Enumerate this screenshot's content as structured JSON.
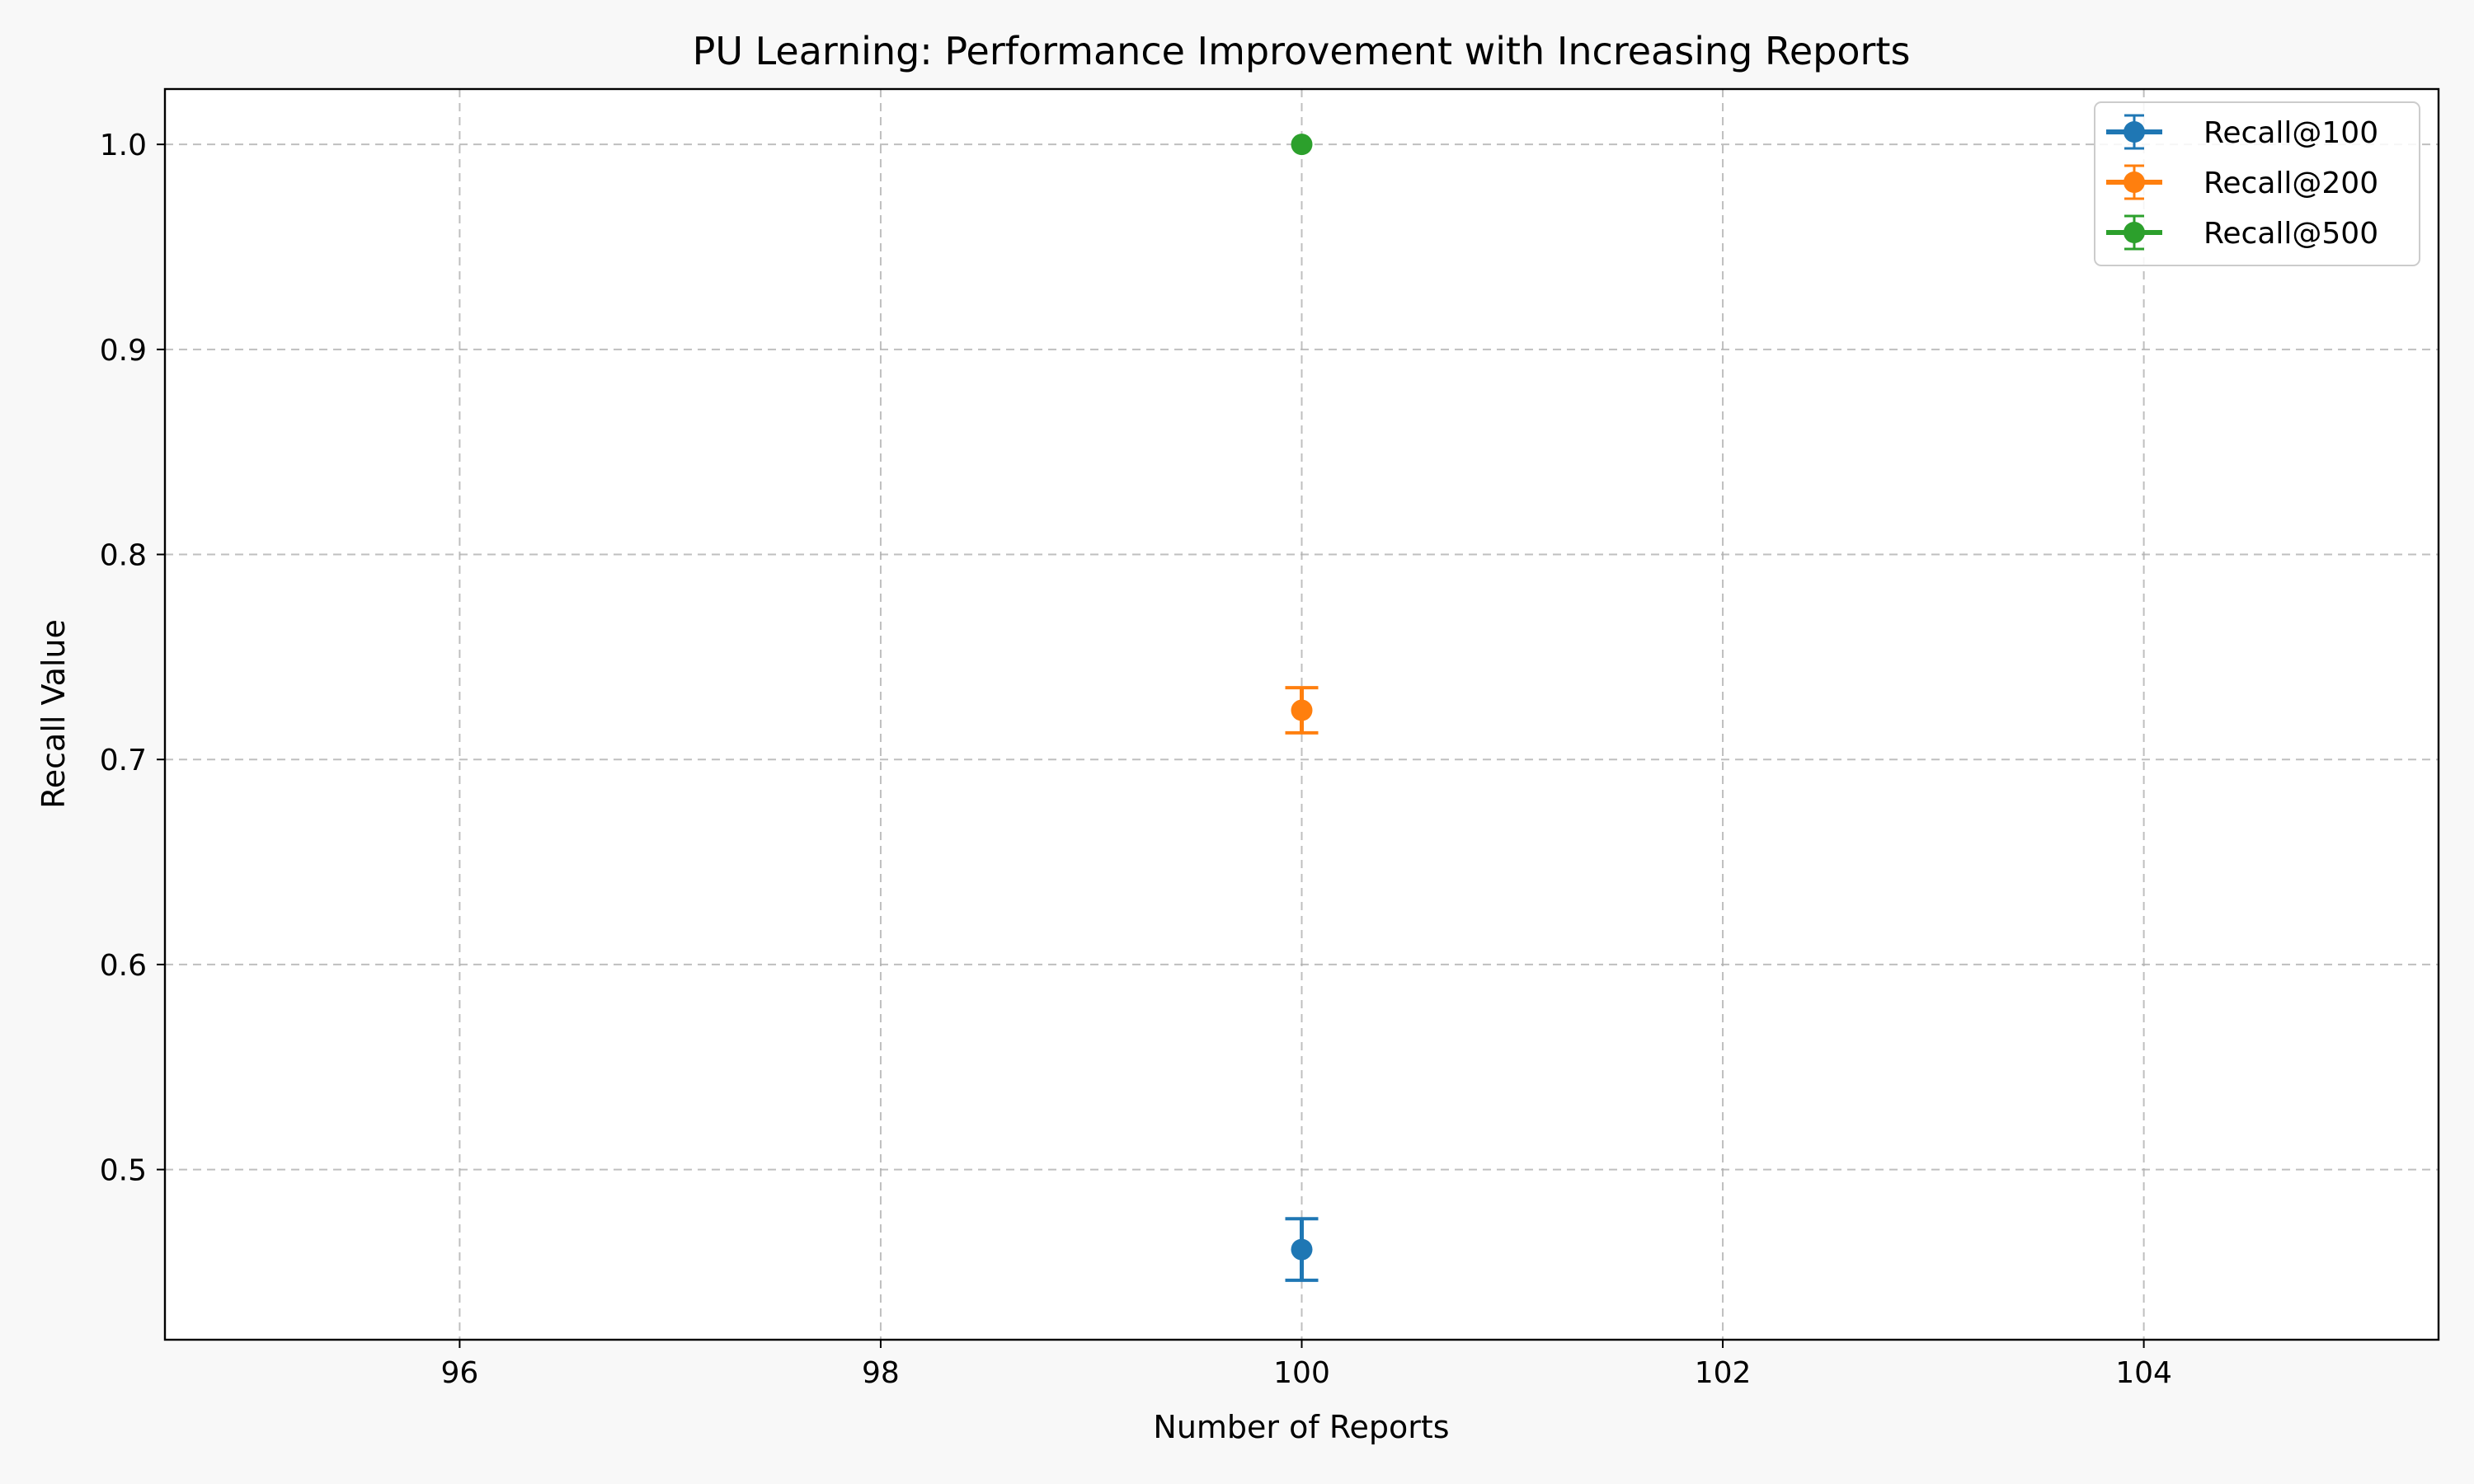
{
  "chart_data": {
    "type": "scatter",
    "title": "PU Learning: Performance Improvement with Increasing Reports",
    "xlabel": "Number of Reports",
    "ylabel": "Recall Value",
    "xlim": [
      94.6,
      105.4
    ],
    "ylim": [
      0.417,
      1.027
    ],
    "xticks": [
      96,
      98,
      100,
      102,
      104
    ],
    "yticks": [
      0.5,
      0.6,
      0.7,
      0.8,
      0.9,
      1.0
    ],
    "grid": true,
    "legend_position": "top-right",
    "series": [
      {
        "name": "Recall@100",
        "color": "#1f77b4",
        "x": [
          100
        ],
        "y": [
          0.461
        ],
        "err": [
          0.015
        ]
      },
      {
        "name": "Recall@200",
        "color": "#ff7f0e",
        "x": [
          100
        ],
        "y": [
          0.724
        ],
        "err": [
          0.011
        ]
      },
      {
        "name": "Recall@500",
        "color": "#2ca02c",
        "x": [
          100
        ],
        "y": [
          1.0
        ],
        "err": [
          0.0
        ]
      }
    ]
  }
}
